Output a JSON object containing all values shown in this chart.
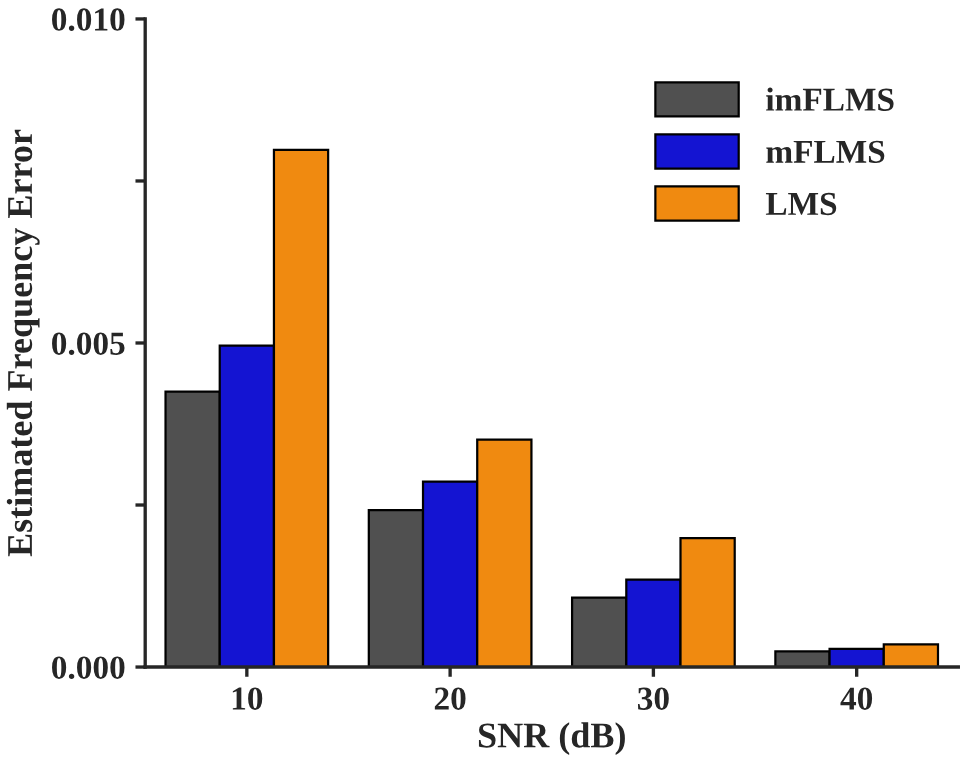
{
  "chart_data": {
    "type": "bar",
    "xlabel": "SNR (dB)",
    "ylabel": "Estimated Frequency Error",
    "categories": [
      "10",
      "20",
      "30",
      "40"
    ],
    "series": [
      {
        "name": "imFLMS",
        "color": "#505050",
        "values": [
          0.00425,
          0.00242,
          0.00107,
          0.00024
        ]
      },
      {
        "name": "mFLMS",
        "color": "#1414d2",
        "values": [
          0.00496,
          0.00286,
          0.00135,
          0.00028
        ]
      },
      {
        "name": "LMS",
        "color": "#f08a10",
        "values": [
          0.00798,
          0.00351,
          0.00199,
          0.00035
        ]
      }
    ],
    "ylim": [
      0,
      0.01
    ],
    "yticks": [
      "0.000",
      {
        "value": 0.0025,
        "label": null
      },
      {
        "value": 0.005,
        "label": "0.005"
      },
      {
        "value": 0.0075,
        "label": null
      },
      {
        "value": 0.01,
        "label": "0.010"
      }
    ],
    "legend": "top right",
    "grid": false
  }
}
